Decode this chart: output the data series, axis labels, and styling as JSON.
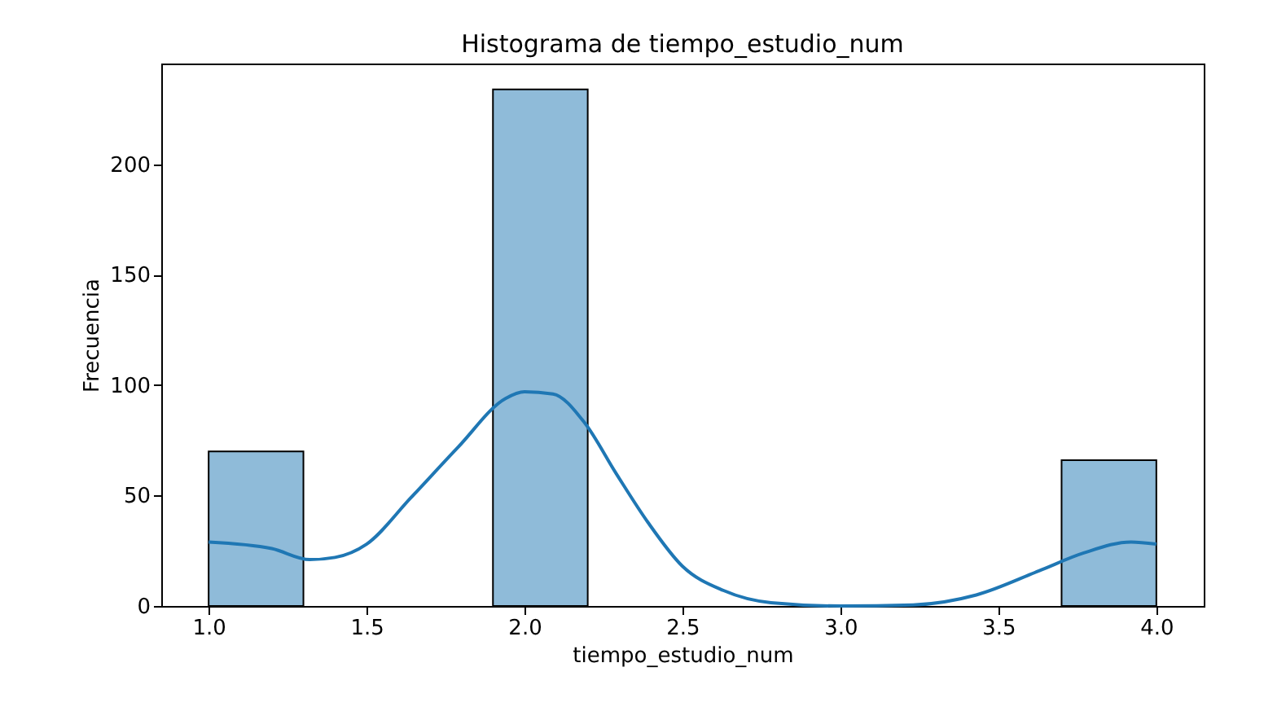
{
  "chart_data": {
    "type": "histogram",
    "title": "Histograma de tiempo_estudio_num",
    "xlabel": "tiempo_estudio_num",
    "ylabel": "Frecuencia",
    "series": [
      {
        "color": "#8fbbd9",
        "bins": [
          1.0,
          1.3,
          1.6,
          1.9,
          2.2,
          2.5,
          2.8,
          3.1,
          3.4,
          3.7,
          4.0
        ],
        "values": [
          70,
          0,
          0,
          234,
          0,
          0,
          0,
          0,
          0,
          66
        ]
      },
      {
        "type": "line",
        "color": "#1f77b4",
        "x": [
          1.0,
          1.2,
          1.32,
          1.4,
          1.5,
          1.64,
          1.79,
          1.94,
          2.0,
          2.09,
          2.19,
          2.29,
          2.39,
          2.5,
          2.63,
          2.78,
          3.0,
          3.23,
          3.43,
          3.63,
          3.77,
          3.92,
          4.0
        ],
        "values": [
          29,
          26,
          21,
          22,
          28,
          49,
          72,
          94,
          97,
          96,
          83,
          60,
          38,
          18,
          7,
          1.5,
          0,
          0.5,
          5,
          16,
          24,
          29,
          28
        ]
      }
    ],
    "xlim": [
      0.85,
      4.15
    ],
    "xticks": [
      {
        "value": 1,
        "label": "1.0"
      },
      {
        "value": 1.5,
        "label": "1.5"
      },
      {
        "value": 2,
        "label": "2.0"
      },
      {
        "value": 2.5,
        "label": "2.5"
      },
      {
        "value": 3,
        "label": "3.0"
      },
      {
        "value": 3.5,
        "label": "3.5"
      },
      {
        "value": 4,
        "label": "4.0"
      }
    ],
    "ylim": [
      0,
      245.7
    ],
    "yticks": [
      0,
      50,
      100,
      150,
      200
    ],
    "grid": false
  }
}
